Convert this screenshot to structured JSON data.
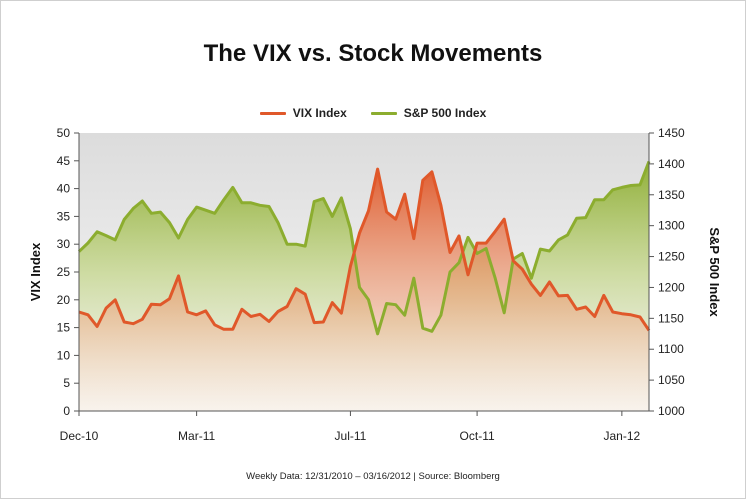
{
  "chart_data": {
    "type": "line",
    "title": "The VIX vs. Stock Movements",
    "footer": "Weekly Data: 12/31/2010 – 03/16/2012  |  Source: Bloomberg",
    "xlabel": "",
    "ylabel_left": "VIX Index",
    "ylabel_right": "S&P 500 Index",
    "ylim_left": [
      0,
      50
    ],
    "ylim_right": [
      1000,
      1450
    ],
    "yticks_left": [
      "0",
      "5",
      "10",
      "15",
      "20",
      "25",
      "30",
      "35",
      "40",
      "45",
      "50"
    ],
    "yticks_right": [
      "1000",
      "1050",
      "1100",
      "1150",
      "1200",
      "1250",
      "1300",
      "1350",
      "1400",
      "1450"
    ],
    "x_tick_labels": [
      "Dec-10",
      "Mar-11",
      "Jul-11",
      "Oct-11",
      "Jan-12"
    ],
    "x_tick_weeks": [
      0,
      13,
      30,
      44,
      60
    ],
    "legend_position": "top-center",
    "grid": false,
    "series": [
      {
        "name": "VIX Index",
        "axis": "left",
        "color": "#e0582a",
        "values": [
          17.8,
          17.3,
          15.2,
          18.5,
          20.0,
          16.0,
          15.7,
          16.5,
          19.2,
          19.1,
          20.2,
          24.3,
          17.8,
          17.3,
          18.0,
          15.5,
          14.7,
          14.7,
          18.3,
          17.0,
          17.4,
          16.1,
          17.9,
          18.8,
          22.0,
          21.0,
          15.9,
          16.0,
          19.5,
          17.6,
          26.0,
          32.0,
          36.0,
          43.5,
          35.8,
          34.5,
          39.0,
          31.0,
          41.5,
          43.0,
          37.0,
          28.5,
          31.5,
          24.5,
          30.2,
          30.2,
          32.3,
          34.5,
          27.0,
          25.5,
          22.8,
          20.8,
          23.2,
          20.7,
          20.8,
          18.3,
          18.7,
          17.0,
          20.8,
          17.8,
          17.5,
          17.3,
          16.9,
          14.5
        ]
      },
      {
        "name": "S&P 500 Index",
        "axis": "right",
        "color": "#8cad2f",
        "values": [
          1258,
          1272,
          1290,
          1284,
          1277,
          1310,
          1328,
          1340,
          1320,
          1322,
          1305,
          1280,
          1310,
          1330,
          1325,
          1320,
          1342,
          1362,
          1337,
          1337,
          1333,
          1331,
          1305,
          1270,
          1270,
          1267,
          1339,
          1344,
          1315,
          1345,
          1295,
          1200,
          1180,
          1125,
          1174,
          1172,
          1155,
          1215,
          1134,
          1129,
          1155,
          1225,
          1240,
          1281,
          1255,
          1263,
          1215,
          1159,
          1246,
          1255,
          1215,
          1262,
          1259,
          1277,
          1285,
          1312,
          1313,
          1342,
          1342,
          1358,
          1362,
          1365,
          1366,
          1404
        ]
      }
    ]
  }
}
